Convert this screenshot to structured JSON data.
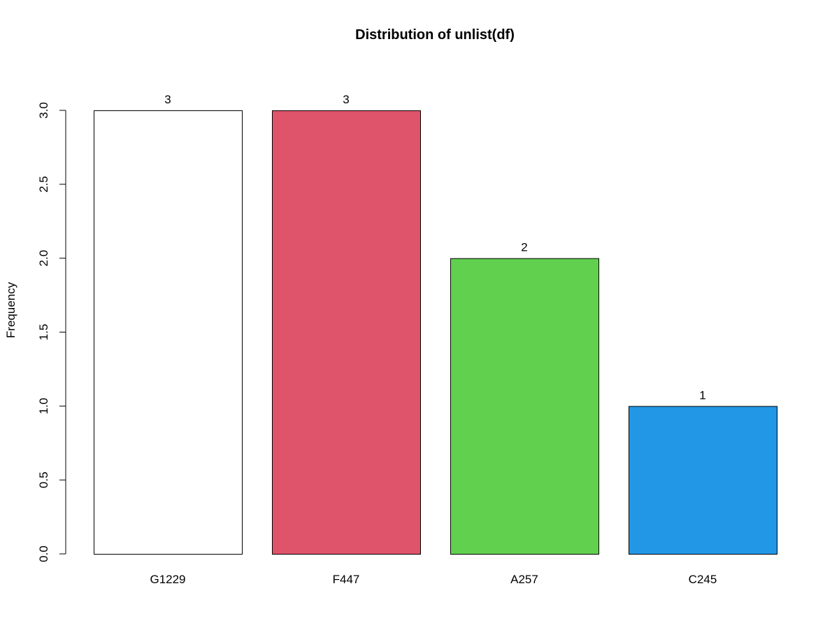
{
  "chart_data": {
    "type": "bar",
    "title": "Distribution of unlist(df)",
    "xlabel": "",
    "ylabel": "Frequency",
    "categories": [
      "G1229",
      "F447",
      "A257",
      "C245"
    ],
    "values": [
      3,
      3,
      2,
      1
    ],
    "data_labels": [
      "3",
      "3",
      "2",
      "1"
    ],
    "colors": [
      "#FFFFFF",
      "#DF536B",
      "#61D04F",
      "#2297E6"
    ],
    "border_color": "#000000",
    "ylim": [
      0,
      3
    ],
    "yticks": [
      0,
      0.5,
      1,
      1.5,
      2,
      2.5,
      3
    ],
    "ytick_labels": [
      "0.0",
      "0.5",
      "1.0",
      "1.5",
      "2.0",
      "2.5",
      "3.0"
    ],
    "grid": false,
    "legend": "none"
  }
}
